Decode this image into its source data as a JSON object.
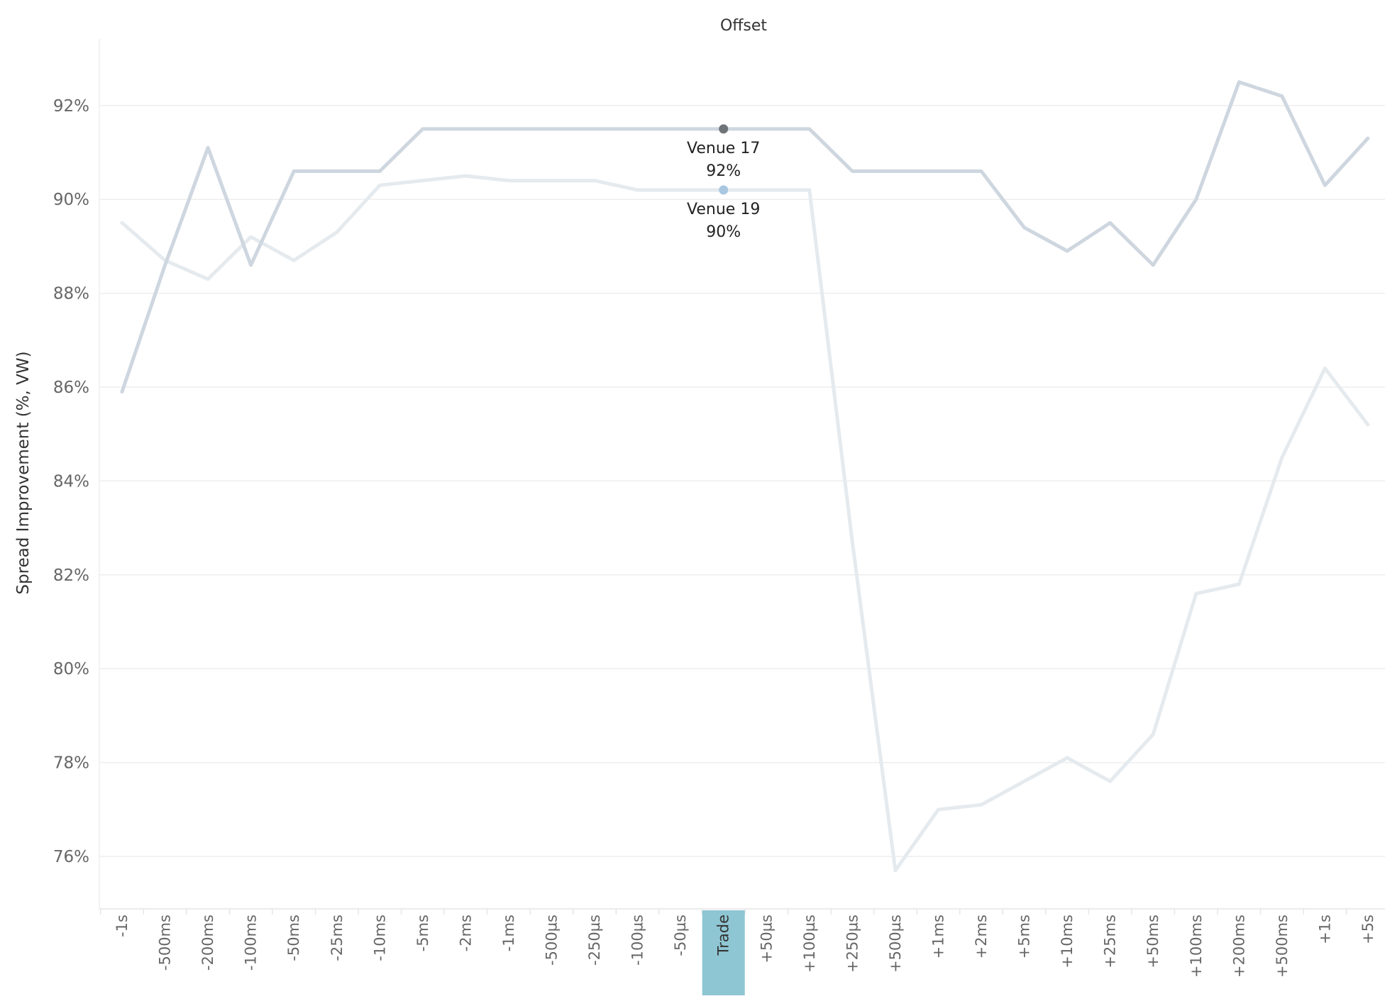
{
  "chart_data": {
    "type": "line",
    "title": "Offset",
    "xlabel": "",
    "ylabel": "Spread Improvement (%, VW)",
    "ylim": [
      74.8,
      93.5
    ],
    "yticks": [
      76,
      78,
      80,
      82,
      84,
      86,
      88,
      90,
      92
    ],
    "ytick_suffix": "%",
    "grid": true,
    "categories": [
      "-1s",
      "-500ms",
      "-200ms",
      "-100ms",
      "-50ms",
      "-25ms",
      "-10ms",
      "-5ms",
      "-2ms",
      "-1ms",
      "-500µs",
      "-250µs",
      "-100µs",
      "-50µs",
      "Trade",
      "+50µs",
      "+100µs",
      "+250µs",
      "+500µs",
      "+1ms",
      "+2ms",
      "+5ms",
      "+10ms",
      "+25ms",
      "+50ms",
      "+100ms",
      "+200ms",
      "+500ms",
      "+1s",
      "+5s"
    ],
    "highlighted_category": "Trade",
    "highlight_color": "#8fc6d3",
    "series": [
      {
        "name": "Venue 17",
        "color": "#ced6df",
        "marker_color": "#6f7478",
        "values": [
          85.9,
          88.6,
          91.1,
          88.6,
          90.6,
          90.6,
          90.6,
          91.5,
          91.5,
          91.5,
          91.5,
          91.5,
          91.5,
          91.5,
          91.5,
          91.5,
          91.5,
          90.6,
          90.6,
          90.6,
          90.6,
          89.4,
          88.9,
          89.5,
          88.6,
          90.0,
          92.5,
          92.2,
          90.3,
          91.3
        ]
      },
      {
        "name": "Venue 19",
        "color": "#e5eaee",
        "marker_color": "#a8c7e0",
        "values": [
          89.5,
          88.7,
          88.3,
          89.2,
          88.7,
          89.3,
          90.3,
          90.4,
          90.5,
          90.4,
          90.4,
          90.4,
          90.2,
          90.2,
          90.2,
          90.2,
          90.2,
          82.7,
          75.7,
          77.0,
          77.1,
          77.6,
          78.1,
          77.6,
          78.6,
          81.6,
          81.8,
          84.5,
          86.4,
          85.2
        ]
      }
    ],
    "annotations": [
      {
        "series": "Venue 17",
        "category": "Trade",
        "name": "Venue 17",
        "value_label": "92%"
      },
      {
        "series": "Venue 19",
        "category": "Trade",
        "name": "Venue 19",
        "value_label": "90%"
      }
    ]
  }
}
